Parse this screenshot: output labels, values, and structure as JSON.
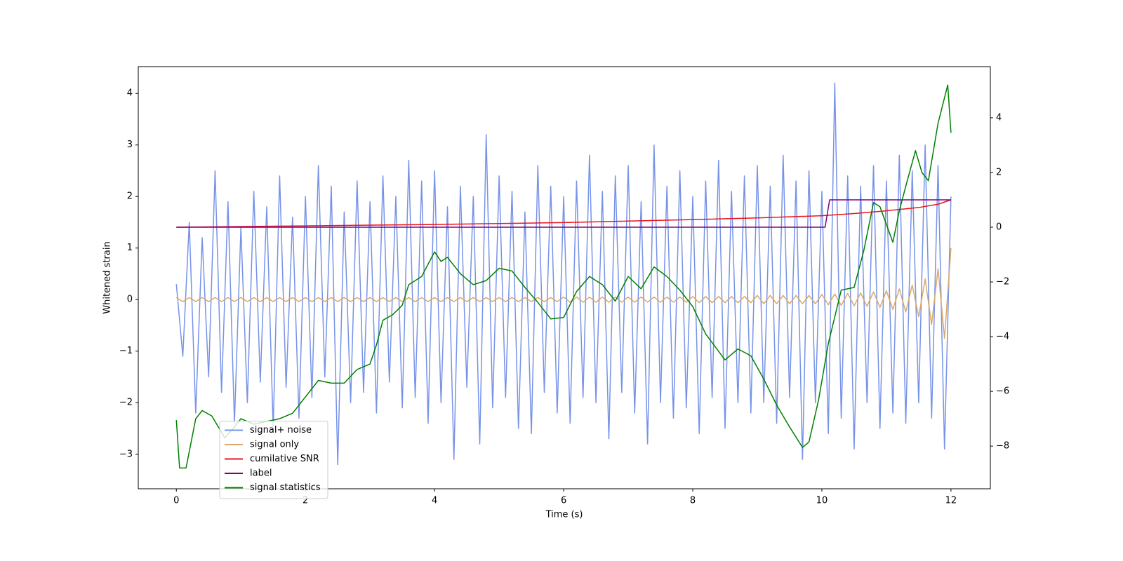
{
  "chart_data": {
    "type": "line",
    "xlabel": "Time (s)",
    "ylabel": "Whitened strain",
    "xlim": [
      -0.59,
      12.61
    ],
    "ylim": [
      -3.67,
      4.52
    ],
    "y2lim": [
      -9.56,
      5.87
    ],
    "xticks": [
      0,
      2,
      4,
      6,
      8,
      10,
      12
    ],
    "yticks": [
      {
        "value": -3,
        "label": "−3"
      },
      {
        "value": -2,
        "label": "−2"
      },
      {
        "value": -1,
        "label": "−1"
      },
      0,
      1,
      2,
      3,
      4
    ],
    "y2ticks": [
      {
        "value": -8,
        "label": "−8"
      },
      {
        "value": -6,
        "label": "−6"
      },
      {
        "value": -4,
        "label": "−4"
      },
      {
        "value": -2,
        "label": "−2"
      },
      0,
      2,
      4
    ],
    "legend_loc": "lower left",
    "series": [
      {
        "name": "signal+ noise",
        "color": "#7793e8",
        "axis": "y",
        "x": [
          0,
          0.1,
          0.2,
          0.3,
          0.4,
          0.5,
          0.6,
          0.7,
          0.8,
          0.9,
          1,
          1.1,
          1.2,
          1.3,
          1.4,
          1.5,
          1.6,
          1.7,
          1.8,
          1.9,
          2,
          2.1,
          2.2,
          2.3,
          2.4,
          2.5,
          2.6,
          2.7,
          2.8,
          2.9,
          3,
          3.1,
          3.2,
          3.3,
          3.4,
          3.5,
          3.6,
          3.7,
          3.8,
          3.9,
          4,
          4.1,
          4.2,
          4.3,
          4.4,
          4.5,
          4.6,
          4.7,
          4.8,
          4.9,
          5,
          5.1,
          5.2,
          5.3,
          5.4,
          5.5,
          5.6,
          5.7,
          5.8,
          5.9,
          6,
          6.1,
          6.2,
          6.3,
          6.4,
          6.5,
          6.6,
          6.7,
          6.8,
          6.9,
          7,
          7.1,
          7.2,
          7.3,
          7.4,
          7.5,
          7.6,
          7.7,
          7.8,
          7.9,
          8,
          8.1,
          8.2,
          8.3,
          8.4,
          8.5,
          8.6,
          8.7,
          8.8,
          8.9,
          9,
          9.1,
          9.2,
          9.3,
          9.4,
          9.5,
          9.6,
          9.7,
          9.8,
          9.9,
          10,
          10.1,
          10.2,
          10.3,
          10.4,
          10.5,
          10.6,
          10.7,
          10.8,
          10.9,
          11,
          11.1,
          11.2,
          11.3,
          11.4,
          11.5,
          11.6,
          11.7,
          11.8,
          11.9,
          12
        ],
        "values": [
          0.3,
          -1.1,
          1.5,
          -2.2,
          1.2,
          -1.5,
          2.5,
          -1.8,
          1.9,
          -2.4,
          1.4,
          -2.0,
          2.1,
          -1.6,
          1.8,
          -2.5,
          2.4,
          -1.7,
          1.6,
          -2.3,
          2.0,
          -1.9,
          2.6,
          -1.5,
          2.2,
          -3.2,
          1.7,
          -2.0,
          2.3,
          -1.8,
          1.9,
          -2.2,
          2.4,
          -1.6,
          2.0,
          -2.1,
          2.7,
          -1.9,
          2.3,
          -2.4,
          2.5,
          -2.0,
          1.8,
          -3.1,
          2.2,
          -1.7,
          2.0,
          -2.8,
          3.2,
          -2.1,
          2.4,
          -1.9,
          2.1,
          -2.5,
          1.7,
          -2.6,
          2.6,
          -1.8,
          2.2,
          -2.2,
          2.0,
          -2.4,
          2.3,
          -1.9,
          2.8,
          -2.0,
          2.1,
          -2.7,
          2.4,
          -1.8,
          2.6,
          -2.2,
          1.9,
          -2.8,
          3.0,
          -2.0,
          2.2,
          -2.3,
          2.5,
          -2.1,
          2.0,
          -2.6,
          2.3,
          -1.9,
          2.7,
          -2.5,
          2.1,
          -2.0,
          2.4,
          -2.2,
          2.6,
          -2.0,
          2.2,
          -2.4,
          2.8,
          -1.9,
          2.3,
          -3.1,
          2.5,
          -2.0,
          2.1,
          -2.6,
          4.2,
          -2.3,
          2.4,
          -2.9,
          2.2,
          -2.0,
          2.6,
          -2.5,
          2.3,
          -2.2,
          2.8,
          -2.4,
          2.5,
          -2.0,
          3.0,
          -2.3,
          2.6,
          -2.9,
          2.0
        ]
      },
      {
        "name": "signal only",
        "color": "#d9a86a",
        "axis": "y",
        "x": [
          0,
          0.1,
          0.2,
          0.3,
          0.4,
          0.5,
          0.6,
          0.7,
          0.8,
          0.9,
          1,
          1.1,
          1.2,
          1.3,
          1.4,
          1.5,
          1.6,
          1.7,
          1.8,
          1.9,
          2,
          2.1,
          2.2,
          2.3,
          2.4,
          2.5,
          2.6,
          2.7,
          2.8,
          2.9,
          3,
          3.1,
          3.2,
          3.3,
          3.4,
          3.5,
          3.6,
          3.7,
          3.8,
          3.9,
          4,
          4.1,
          4.2,
          4.3,
          4.4,
          4.5,
          4.6,
          4.7,
          4.8,
          4.9,
          5,
          5.1,
          5.2,
          5.3,
          5.4,
          5.5,
          5.6,
          5.7,
          5.8,
          5.9,
          6,
          6.1,
          6.2,
          6.3,
          6.4,
          6.5,
          6.6,
          6.7,
          6.8,
          6.9,
          7,
          7.1,
          7.2,
          7.3,
          7.4,
          7.5,
          7.6,
          7.7,
          7.8,
          7.9,
          8,
          8.1,
          8.2,
          8.3,
          8.4,
          8.5,
          8.6,
          8.7,
          8.8,
          8.9,
          9,
          9.1,
          9.2,
          9.3,
          9.4,
          9.5,
          9.6,
          9.7,
          9.8,
          9.9,
          10,
          10.1,
          10.2,
          10.3,
          10.4,
          10.5,
          10.6,
          10.7,
          10.8,
          10.9,
          11,
          11.1,
          11.2,
          11.3,
          11.4,
          11.5,
          11.6,
          11.7,
          11.8,
          11.9,
          12
        ],
        "values": [
          0.04,
          -0.04,
          0.04,
          -0.04,
          0.04,
          -0.04,
          0.04,
          -0.04,
          0.04,
          -0.04,
          0.04,
          -0.04,
          0.04,
          -0.04,
          0.04,
          -0.04,
          0.04,
          -0.04,
          0.04,
          -0.04,
          0.04,
          -0.04,
          0.04,
          -0.04,
          0.04,
          -0.04,
          0.04,
          -0.04,
          0.04,
          -0.04,
          0.04,
          -0.04,
          0.04,
          -0.04,
          0.04,
          -0.04,
          0.04,
          -0.04,
          0.04,
          -0.04,
          0.04,
          -0.04,
          0.04,
          -0.04,
          0.04,
          -0.04,
          0.04,
          -0.04,
          0.04,
          -0.04,
          0.04,
          -0.04,
          0.04,
          -0.04,
          0.04,
          -0.04,
          0.04,
          -0.04,
          0.04,
          -0.04,
          0.05,
          -0.05,
          0.05,
          -0.05,
          0.05,
          -0.05,
          0.05,
          -0.05,
          0.05,
          -0.05,
          0.05,
          -0.05,
          0.05,
          -0.05,
          0.05,
          -0.05,
          0.05,
          -0.05,
          0.05,
          -0.05,
          0.06,
          -0.06,
          0.06,
          -0.06,
          0.06,
          -0.06,
          0.06,
          -0.06,
          0.06,
          -0.06,
          0.08,
          -0.08,
          0.08,
          -0.08,
          0.08,
          -0.08,
          0.08,
          -0.08,
          0.08,
          -0.08,
          0.1,
          -0.1,
          0.11,
          -0.11,
          0.12,
          -0.12,
          0.13,
          -0.13,
          0.15,
          -0.15,
          0.17,
          -0.19,
          0.21,
          -0.24,
          0.28,
          -0.33,
          0.4,
          -0.48,
          0.6,
          -0.75,
          1.0
        ]
      },
      {
        "name": "cumilative SNR",
        "color": "#e8141e",
        "axis": "y2",
        "x": [
          0,
          2,
          4,
          6,
          8,
          9,
          10,
          10.5,
          11,
          11.5,
          11.8,
          12
        ],
        "values": [
          0,
          0.05,
          0.1,
          0.17,
          0.28,
          0.34,
          0.42,
          0.5,
          0.6,
          0.72,
          0.84,
          1.0
        ]
      },
      {
        "name": "label",
        "color": "#800080",
        "axis": "y2",
        "x": [
          0,
          10.05,
          10.12,
          12
        ],
        "values": [
          0,
          0,
          1,
          1
        ]
      },
      {
        "name": "signal statistics",
        "color": "#008000",
        "axis": "y2",
        "x": [
          0,
          0.05,
          0.15,
          0.3,
          0.4,
          0.55,
          0.75,
          0.9,
          1.0,
          1.2,
          1.4,
          1.6,
          1.8,
          2.0,
          2.2,
          2.4,
          2.6,
          2.8,
          3.0,
          3.1,
          3.2,
          3.35,
          3.5,
          3.6,
          3.8,
          4.0,
          4.1,
          4.2,
          4.4,
          4.6,
          4.8,
          5.0,
          5.2,
          5.4,
          5.6,
          5.8,
          6.0,
          6.2,
          6.4,
          6.6,
          6.8,
          7.0,
          7.2,
          7.4,
          7.6,
          7.8,
          8.0,
          8.2,
          8.5,
          8.7,
          8.9,
          9.1,
          9.3,
          9.5,
          9.7,
          9.8,
          9.95,
          10.1,
          10.3,
          10.5,
          10.65,
          10.8,
          10.9,
          11.1,
          11.2,
          11.3,
          11.45,
          11.55,
          11.65,
          11.8,
          11.95,
          12.0
        ],
        "values": [
          -7.05,
          -8.8,
          -8.8,
          -7.0,
          -6.7,
          -6.9,
          -7.7,
          -7.3,
          -7.0,
          -7.2,
          -7.1,
          -7.0,
          -6.8,
          -6.2,
          -5.6,
          -5.7,
          -5.7,
          -5.2,
          -5.0,
          -4.3,
          -3.4,
          -3.2,
          -2.85,
          -2.1,
          -1.8,
          -0.9,
          -1.25,
          -1.1,
          -1.7,
          -2.1,
          -1.95,
          -1.5,
          -1.6,
          -2.2,
          -2.75,
          -3.35,
          -3.3,
          -2.35,
          -1.8,
          -2.1,
          -2.7,
          -1.8,
          -2.25,
          -1.45,
          -1.8,
          -2.3,
          -2.9,
          -3.9,
          -4.85,
          -4.45,
          -4.7,
          -5.55,
          -6.5,
          -7.3,
          -8.05,
          -7.85,
          -6.3,
          -4.25,
          -2.3,
          -2.2,
          -0.85,
          0.9,
          0.75,
          -0.55,
          0.6,
          1.5,
          2.8,
          2.0,
          1.7,
          3.8,
          5.2,
          3.45
        ]
      }
    ]
  }
}
